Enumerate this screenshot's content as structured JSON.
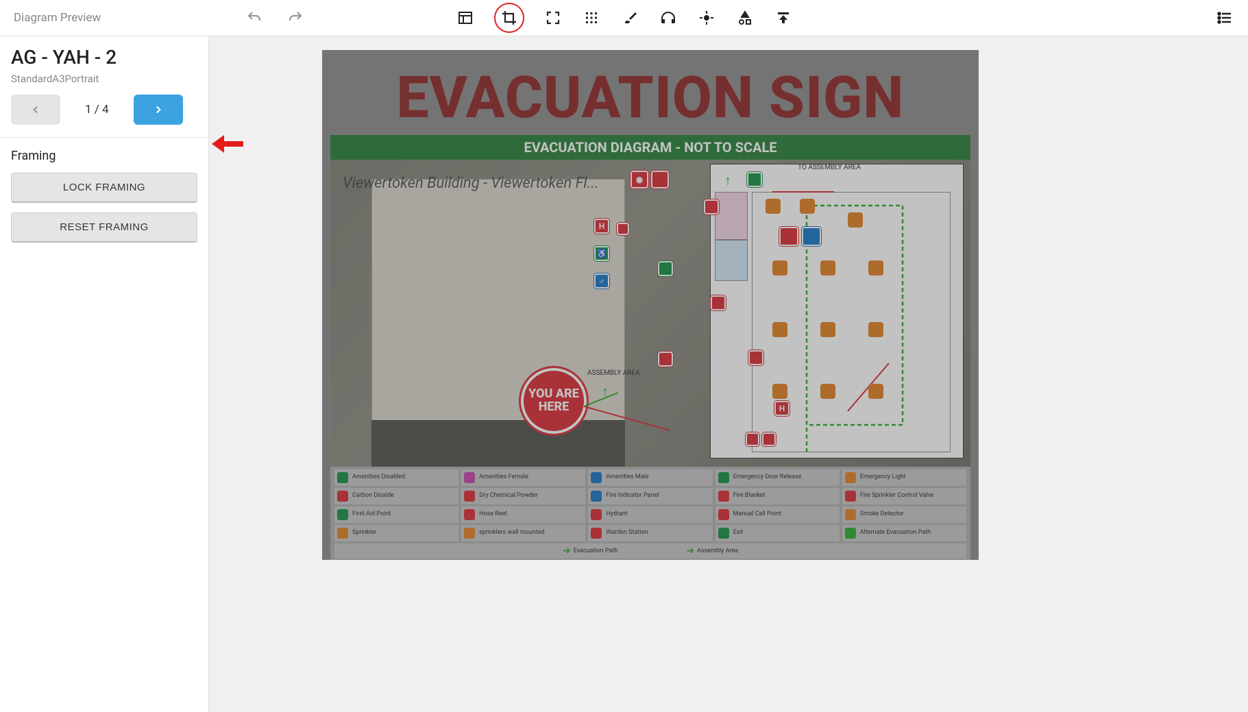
{
  "toolbar": {
    "title": "Diagram Preview"
  },
  "document": {
    "title": "AG - YAH - 2",
    "format": "StandardA3Portrait"
  },
  "pager": {
    "current": 1,
    "total": 4,
    "label": "1 / 4"
  },
  "framing": {
    "section_title": "Framing",
    "lock_label": "LOCK FRAMING",
    "reset_label": "RESET FRAMING"
  },
  "diagram": {
    "heading": "EVACUATION SIGN",
    "subheading": "EVACUATION DIAGRAM - NOT TO SCALE",
    "watermark": "Viewertoken Building - Viewertoken Fl...",
    "you_are_here": "YOU ARE HERE",
    "to_assembly": "TO ASSEMBLY AREA",
    "assembly_area": "ASSEMBLY AREA",
    "title_color": "#8b1e1e",
    "bar_color": "#1e7a2e"
  },
  "legend": {
    "rows": [
      [
        {
          "label": "Amenities Disabled",
          "color": "#0a8a3a"
        },
        {
          "label": "Amenities Female",
          "color": "#c23da8"
        },
        {
          "label": "Amenities Male",
          "color": "#0b6fc2"
        },
        {
          "label": "Emergency Door Release",
          "color": "#0a8a3a"
        },
        {
          "label": "Emergency Light",
          "color": "#e07b1a"
        }
      ],
      [
        {
          "label": "Carbon Dioxide",
          "color": "#d8232a"
        },
        {
          "label": "Dry Chemical Powder",
          "color": "#d8232a"
        },
        {
          "label": "Fire Indicator Panel",
          "color": "#0b6fc2"
        },
        {
          "label": "Fire Blanket",
          "color": "#d8232a"
        },
        {
          "label": "Fire Sprinkler Control Valve",
          "color": "#d8232a"
        }
      ],
      [
        {
          "label": "First Aid Point",
          "color": "#0a8a3a"
        },
        {
          "label": "Hose Reel",
          "color": "#d8232a"
        },
        {
          "label": "Hydrant",
          "color": "#d8232a"
        },
        {
          "label": "Manual Call Point",
          "color": "#d8232a"
        },
        {
          "label": "Smoke Detector",
          "color": "#e07b1a"
        }
      ],
      [
        {
          "label": "Sprinkler",
          "color": "#e07b1a"
        },
        {
          "label": "sprinklers wall mounted",
          "color": "#e07b1a"
        },
        {
          "label": "Warden Station",
          "color": "#d8232a"
        },
        {
          "label": "Exit",
          "color": "#0a8a3a"
        },
        {
          "label": "Alternate Evacuation Path",
          "color": "#1faa1f"
        }
      ]
    ],
    "bottom": [
      {
        "label": "Evacuation Path",
        "color": "#1faa1f"
      },
      {
        "label": "Assembly Area",
        "color": "#1faa1f"
      }
    ]
  },
  "annotation": {
    "highlight_tool": "crop"
  }
}
